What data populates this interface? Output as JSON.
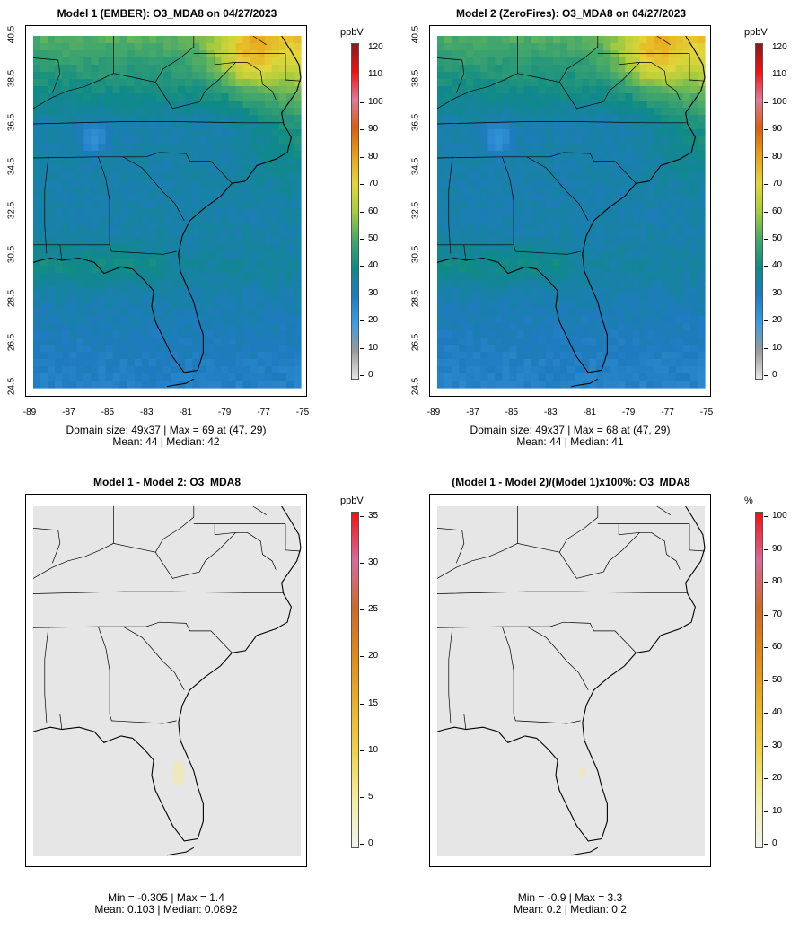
{
  "panels": [
    {
      "title": "Model 1 (EMBER): O3_MDA8 on 04/27/2023",
      "caption_line1": "Domain size: 49x37 | Max = 69 at (47, 29)",
      "caption_line2": "Mean: 44 |  Median: 42",
      "colorbar_unit": "ppbV",
      "colorbar_labels": [
        "120",
        "110",
        "100",
        "90",
        "80",
        "70",
        "60",
        "50",
        "40",
        "30",
        "20",
        "10",
        "0"
      ],
      "y_ticks": [
        "40.5",
        "38.5",
        "36.5",
        "34.5",
        "32.5",
        "30.5",
        "28.5",
        "26.5",
        "24.5"
      ],
      "x_ticks": [
        "-89",
        "-87",
        "-85",
        "-83",
        "-81",
        "-79",
        "-77",
        "-75"
      ],
      "field": "o3a"
    },
    {
      "title": "Model 2 (ZeroFires): O3_MDA8 on 04/27/2023",
      "caption_line1": "Domain size: 49x37 | Max = 68 at (47, 29)",
      "caption_line2": "Mean: 44 |  Median: 41",
      "colorbar_unit": "ppbV",
      "colorbar_labels": [
        "120",
        "110",
        "100",
        "90",
        "80",
        "70",
        "60",
        "50",
        "40",
        "30",
        "20",
        "10",
        "0"
      ],
      "y_ticks": [
        "40.5",
        "38.5",
        "36.5",
        "34.5",
        "32.5",
        "30.5",
        "28.5",
        "26.5",
        "24.5"
      ],
      "x_ticks": [
        "-89",
        "-87",
        "-85",
        "-83",
        "-81",
        "-79",
        "-77",
        "-75"
      ],
      "field": "o3b"
    },
    {
      "title": "Model 1 - Model 2: O3_MDA8",
      "caption_line1": "Min = -0.305 | Max = 1.4",
      "caption_line2": "Mean: 0.103 |  Median: 0.0892",
      "colorbar_unit": "ppbV",
      "colorbar_labels": [
        "35",
        "30",
        "25",
        "20",
        "15",
        "10",
        "5",
        "0"
      ],
      "y_ticks": [],
      "x_ticks": [],
      "field": "diff"
    },
    {
      "title": "(Model 1 - Model 2)/(Model 1)x100%: O3_MDA8",
      "caption_line1": "Min = -0.9 | Max = 3.3",
      "caption_line2": "Mean: 0.2 |  Median: 0.2",
      "colorbar_unit": "%",
      "colorbar_labels": [
        "100",
        "90",
        "80",
        "70",
        "60",
        "50",
        "40",
        "30",
        "20",
        "10",
        "0"
      ],
      "y_ticks": [],
      "x_ticks": [],
      "field": "pct"
    }
  ],
  "colors": {
    "ozone_scale": [
      "#e6e6e6",
      "#9a9a9a",
      "#3a9ee0",
      "#1f7bbf",
      "#0f8a86",
      "#45a86a",
      "#a8cc3c",
      "#e3d63a",
      "#e8a018",
      "#d95f0e",
      "#e07a9a",
      "#f51010",
      "#8b1a1a"
    ],
    "diff_scale": [
      "#f2f2f2",
      "#f3eda0",
      "#eed34a",
      "#e9b12a",
      "#e08a1a",
      "#cc6a2a",
      "#d86a9a",
      "#f51010"
    ]
  }
}
